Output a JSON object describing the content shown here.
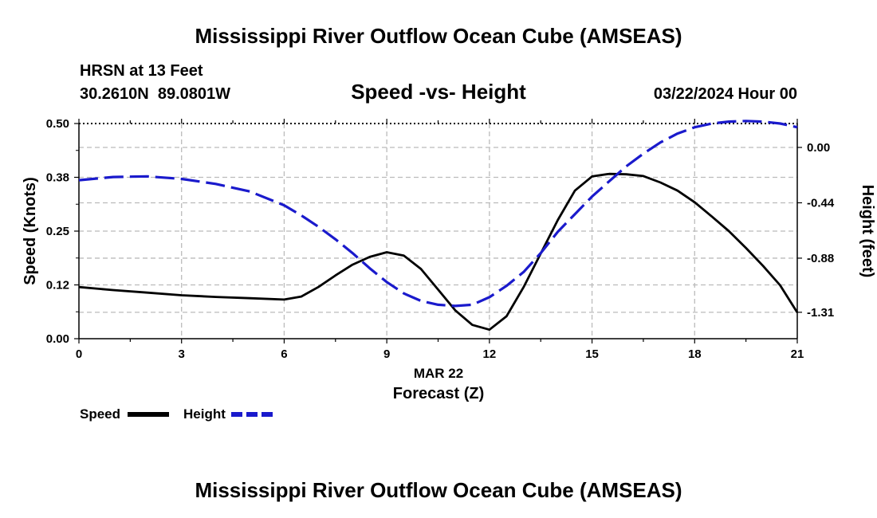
{
  "page": {
    "title_top": "Mississippi River Outflow Ocean Cube (AMSEAS)",
    "title_bottom": "Mississippi River Outflow Ocean Cube (AMSEAS)",
    "station": "HRSN at 13 Feet",
    "coords": "30.2610N  89.0801W",
    "datetime": "03/22/2024 Hour 00"
  },
  "chart_data": {
    "type": "line",
    "title": "Speed -vs- Height",
    "xlabel_date": "MAR 22",
    "xlabel": "Forecast (Z)",
    "ylabel_left": "Speed (Knots)",
    "ylabel_right": "Height (feet)",
    "xlim": [
      0,
      21
    ],
    "ylim_left": [
      0,
      0.5
    ],
    "ylim_right": [
      -1.52,
      0.19
    ],
    "x_ticks": [
      "0",
      "3",
      "6",
      "9",
      "12",
      "15",
      "18",
      "21"
    ],
    "x_tick_values": [
      0,
      3,
      6,
      9,
      12,
      15,
      18,
      21
    ],
    "y_left_ticks": [
      "0.00",
      "0.12",
      "0.25",
      "0.38",
      "0.50"
    ],
    "y_left_tick_values": [
      0,
      0.125,
      0.25,
      0.375,
      0.5
    ],
    "y_right_ticks": [
      "0.00",
      "-0.44",
      "-0.88",
      "-1.31"
    ],
    "y_right_tick_values": [
      0.0,
      -0.44,
      -0.88,
      -1.31
    ],
    "grid": true,
    "series": [
      {
        "name": "Speed",
        "axis": "left",
        "color": "#000000",
        "dash": "solid",
        "x": [
          0,
          1,
          2,
          3,
          4,
          5,
          6,
          6.5,
          7,
          7.5,
          8,
          8.5,
          9,
          9.5,
          10,
          10.5,
          11,
          11.5,
          12,
          12.5,
          13,
          13.5,
          14,
          14.5,
          15,
          15.5,
          16,
          16.5,
          17,
          17.5,
          18,
          18.5,
          19,
          19.5,
          20,
          20.5,
          21
        ],
        "values": [
          0.12,
          0.113,
          0.107,
          0.101,
          0.097,
          0.094,
          0.091,
          0.098,
          0.12,
          0.147,
          0.172,
          0.19,
          0.201,
          0.193,
          0.162,
          0.114,
          0.066,
          0.032,
          0.021,
          0.052,
          0.12,
          0.198,
          0.276,
          0.344,
          0.377,
          0.383,
          0.382,
          0.378,
          0.363,
          0.344,
          0.317,
          0.284,
          0.25,
          0.211,
          0.169,
          0.124,
          0.061
        ]
      },
      {
        "name": "Height",
        "axis": "right",
        "color": "#1a1acc",
        "dash": "dashed",
        "x": [
          0,
          1,
          2,
          3,
          4,
          5,
          6,
          6.5,
          7,
          7.5,
          8,
          8.5,
          9,
          9.5,
          10,
          10.5,
          11,
          11.5,
          12,
          12.5,
          13,
          13.5,
          14,
          14.5,
          15,
          15.5,
          16,
          16.5,
          17,
          17.5,
          18,
          18.5,
          19,
          19.5,
          20,
          20.5,
          21
        ],
        "values": [
          -0.26,
          -0.235,
          -0.23,
          -0.25,
          -0.29,
          -0.35,
          -0.46,
          -0.54,
          -0.63,
          -0.73,
          -0.84,
          -0.96,
          -1.07,
          -1.16,
          -1.22,
          -1.25,
          -1.26,
          -1.25,
          -1.19,
          -1.1,
          -0.99,
          -0.84,
          -0.67,
          -0.53,
          -0.39,
          -0.27,
          -0.15,
          -0.05,
          0.04,
          0.11,
          0.16,
          0.19,
          0.205,
          0.21,
          0.205,
          0.19,
          0.16
        ]
      }
    ],
    "legend": [
      {
        "label": "Speed",
        "color": "#000000",
        "dash": "solid"
      },
      {
        "label": "Height",
        "color": "#1a1acc",
        "dash": "dashed"
      }
    ]
  }
}
